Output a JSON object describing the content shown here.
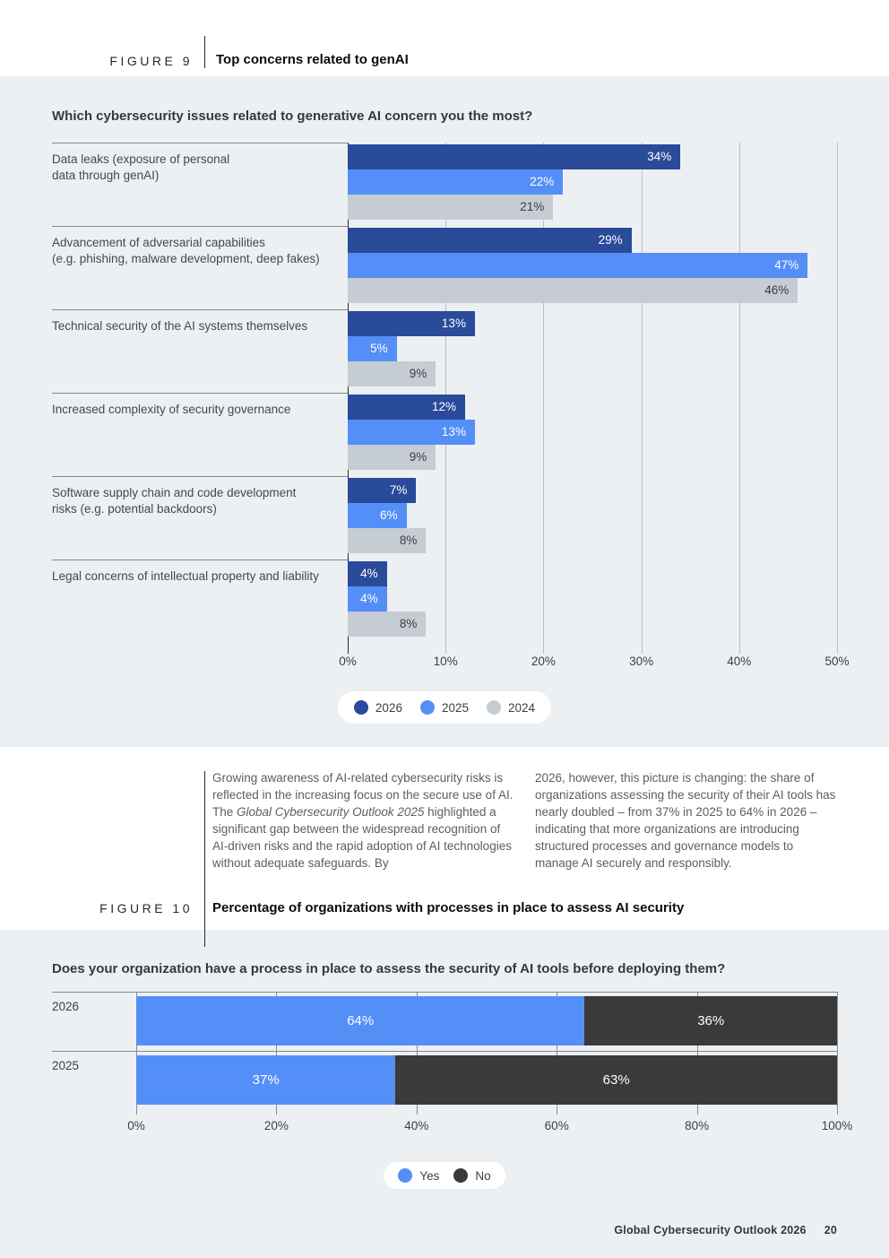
{
  "figure9": {
    "label": "FIGURE 9",
    "title": "Top concerns related to genAI",
    "question": "Which cybersecurity issues related to generative AI concern you the most?",
    "chart_data": {
      "type": "bar",
      "orientation": "horizontal",
      "title": "Top concerns related to genAI",
      "categories": [
        "Data leaks (exposure of personal\ndata through genAI)",
        "Advancement of adversarial capabilities\n(e.g. phishing, malware development, deep fakes)",
        "Technical security of the AI systems themselves",
        "Increased complexity of security governance",
        "Software supply chain and code development\nrisks (e.g. potential backdoors)",
        "Legal concerns of intellectual property and liability"
      ],
      "series": [
        {
          "name": "2026",
          "color": "#2a4a9a",
          "value_label_color": "#ffffff",
          "values": [
            34,
            29,
            13,
            12,
            7,
            4
          ]
        },
        {
          "name": "2025",
          "color": "#548ff8",
          "value_label_color": "#ffffff",
          "values": [
            22,
            47,
            5,
            13,
            6,
            4
          ]
        },
        {
          "name": "2024",
          "color": "#c6ccd3",
          "value_label_color": "#3c4043",
          "values": [
            21,
            46,
            9,
            9,
            8,
            8
          ]
        }
      ],
      "value_suffix": "%",
      "xlim": [
        0,
        50
      ],
      "xticks": [
        "0%",
        "10%",
        "20%",
        "30%",
        "40%",
        "50%"
      ],
      "grid": "vertical",
      "legend_position": "bottom"
    }
  },
  "body_text": {
    "left_before_italic": "Growing awareness of AI-related cybersecurity risks is reflected in the increasing focus on the secure use of AI. The ",
    "left_italic": "Global Cybersecurity Outlook 2025",
    "left_after_italic": " highlighted a significant gap between the widespread recognition of AI-driven risks and the rapid adoption of AI technologies without adequate safeguards. By",
    "right": "2026, however, this picture is changing: the share of organizations assessing the security of their AI tools has nearly doubled – from 37% in 2025 to 64% in 2026 – indicating that more organizations are introducing structured processes and governance models to manage AI securely and responsibly."
  },
  "figure10": {
    "label": "FIGURE 10",
    "title": "Percentage of organizations with processes in place to assess AI security",
    "question": "Does your organization have a process in place to assess the security of AI tools before deploying them?",
    "chart_data": {
      "type": "bar",
      "stacked": true,
      "orientation": "horizontal",
      "title": "Percentage of organizations with processes in place to assess AI security",
      "categories": [
        "2026",
        "2025"
      ],
      "series": [
        {
          "name": "Yes",
          "color": "#548ff8",
          "value_label_color": "#ffffff",
          "values": [
            64,
            37
          ]
        },
        {
          "name": "No",
          "color": "#3b3a38",
          "value_label_color": "#ffffff",
          "values": [
            36,
            63
          ]
        }
      ],
      "value_suffix": "%",
      "xlim": [
        0,
        100
      ],
      "xticks": [
        "0%",
        "20%",
        "40%",
        "60%",
        "80%",
        "100%"
      ],
      "grid": "vertical",
      "legend_position": "bottom"
    }
  },
  "footer": {
    "source": "Global Cybersecurity Outlook 2026",
    "page_number": "20"
  },
  "colors": {
    "panel_bg": "#edf0f3",
    "navy_2026": "#2a4a9a",
    "blue_2025": "#548ff8",
    "gray_2024": "#c6ccd3",
    "charcoal_no": "#3b3a38"
  }
}
